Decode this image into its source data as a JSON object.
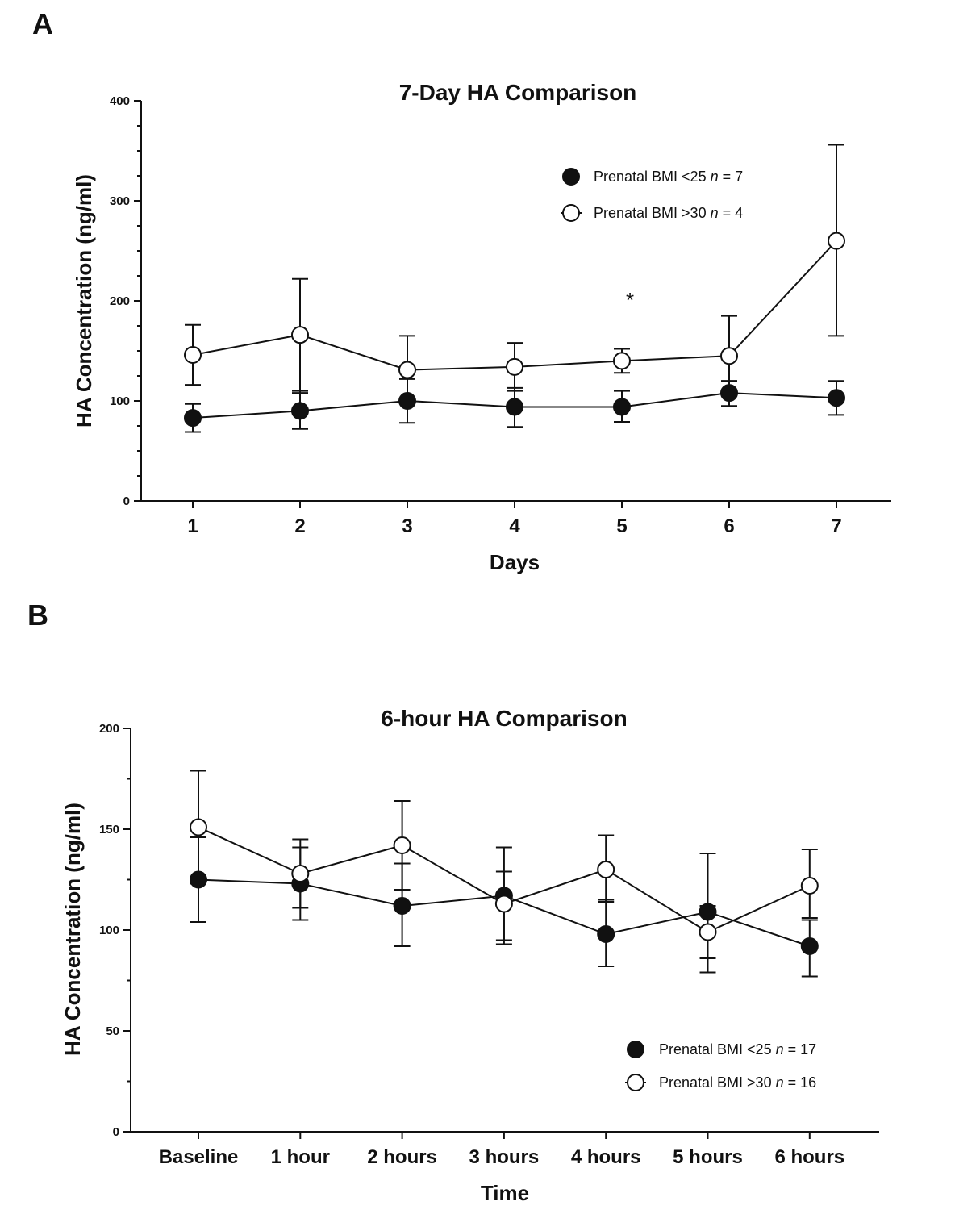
{
  "chart_data": [
    {
      "panel": "A",
      "type": "line",
      "title": "7-Day HA Comparison",
      "xlabel": "Days",
      "ylabel": "HA Concentration (ng/ml)",
      "categories": [
        "1",
        "2",
        "3",
        "4",
        "5",
        "6",
        "7"
      ],
      "ylim": [
        0,
        400
      ],
      "yticks": [
        "0",
        "100",
        "200",
        "300",
        "400"
      ],
      "grid": false,
      "legend_position": "top-right",
      "annotations": [
        {
          "text": "*",
          "category": "5",
          "y": 205
        }
      ],
      "series": [
        {
          "name": "Prenatal BMI <25 ",
          "n_label": "n",
          "n_value": " = 7",
          "marker": "filled",
          "values": [
            83,
            90,
            100,
            94,
            94,
            108,
            103
          ],
          "err_upper": [
            97,
            110,
            122,
            113,
            110,
            120,
            120
          ],
          "err_lower": [
            69,
            72,
            78,
            74,
            79,
            95,
            86
          ]
        },
        {
          "name": "Prenatal BMI >30 ",
          "n_label": "n",
          "n_value": " = 4",
          "marker": "open",
          "values": [
            146,
            166,
            131,
            134,
            140,
            145,
            260
          ],
          "err_upper": [
            176,
            222,
            165,
            158,
            152,
            185,
            356
          ],
          "err_lower": [
            116,
            108,
            122,
            110,
            128,
            120,
            165
          ]
        }
      ]
    },
    {
      "panel": "B",
      "type": "line",
      "title": "6-hour HA Comparison",
      "xlabel": "Time",
      "ylabel": "HA Concentration (ng/ml)",
      "categories": [
        "Baseline",
        "1 hour",
        "2 hours",
        "3 hours",
        "4 hours",
        "5 hours",
        "6 hours"
      ],
      "ylim": [
        0,
        200
      ],
      "yticks": [
        "0",
        "50",
        "100",
        "150",
        "200"
      ],
      "grid": false,
      "legend_position": "bottom-right",
      "annotations": [],
      "series": [
        {
          "name": "Prenatal BMI <25 ",
          "n_label": "n",
          "n_value": " = 17",
          "marker": "filled",
          "values": [
            125,
            123,
            112,
            117,
            98,
            109,
            92
          ],
          "err_upper": [
            146,
            141,
            133,
            129,
            115,
            112,
            105
          ],
          "err_lower": [
            104,
            105,
            92,
            93,
            82,
            79,
            77
          ]
        },
        {
          "name": "Prenatal BMI >30 ",
          "n_label": "n",
          "n_value": " = 16",
          "marker": "open",
          "values": [
            151,
            128,
            142,
            113,
            130,
            99,
            122
          ],
          "err_upper": [
            179,
            145,
            164,
            141,
            147,
            138,
            140
          ],
          "err_lower": [
            123,
            111,
            120,
            95,
            114,
            86,
            106
          ]
        }
      ]
    }
  ]
}
